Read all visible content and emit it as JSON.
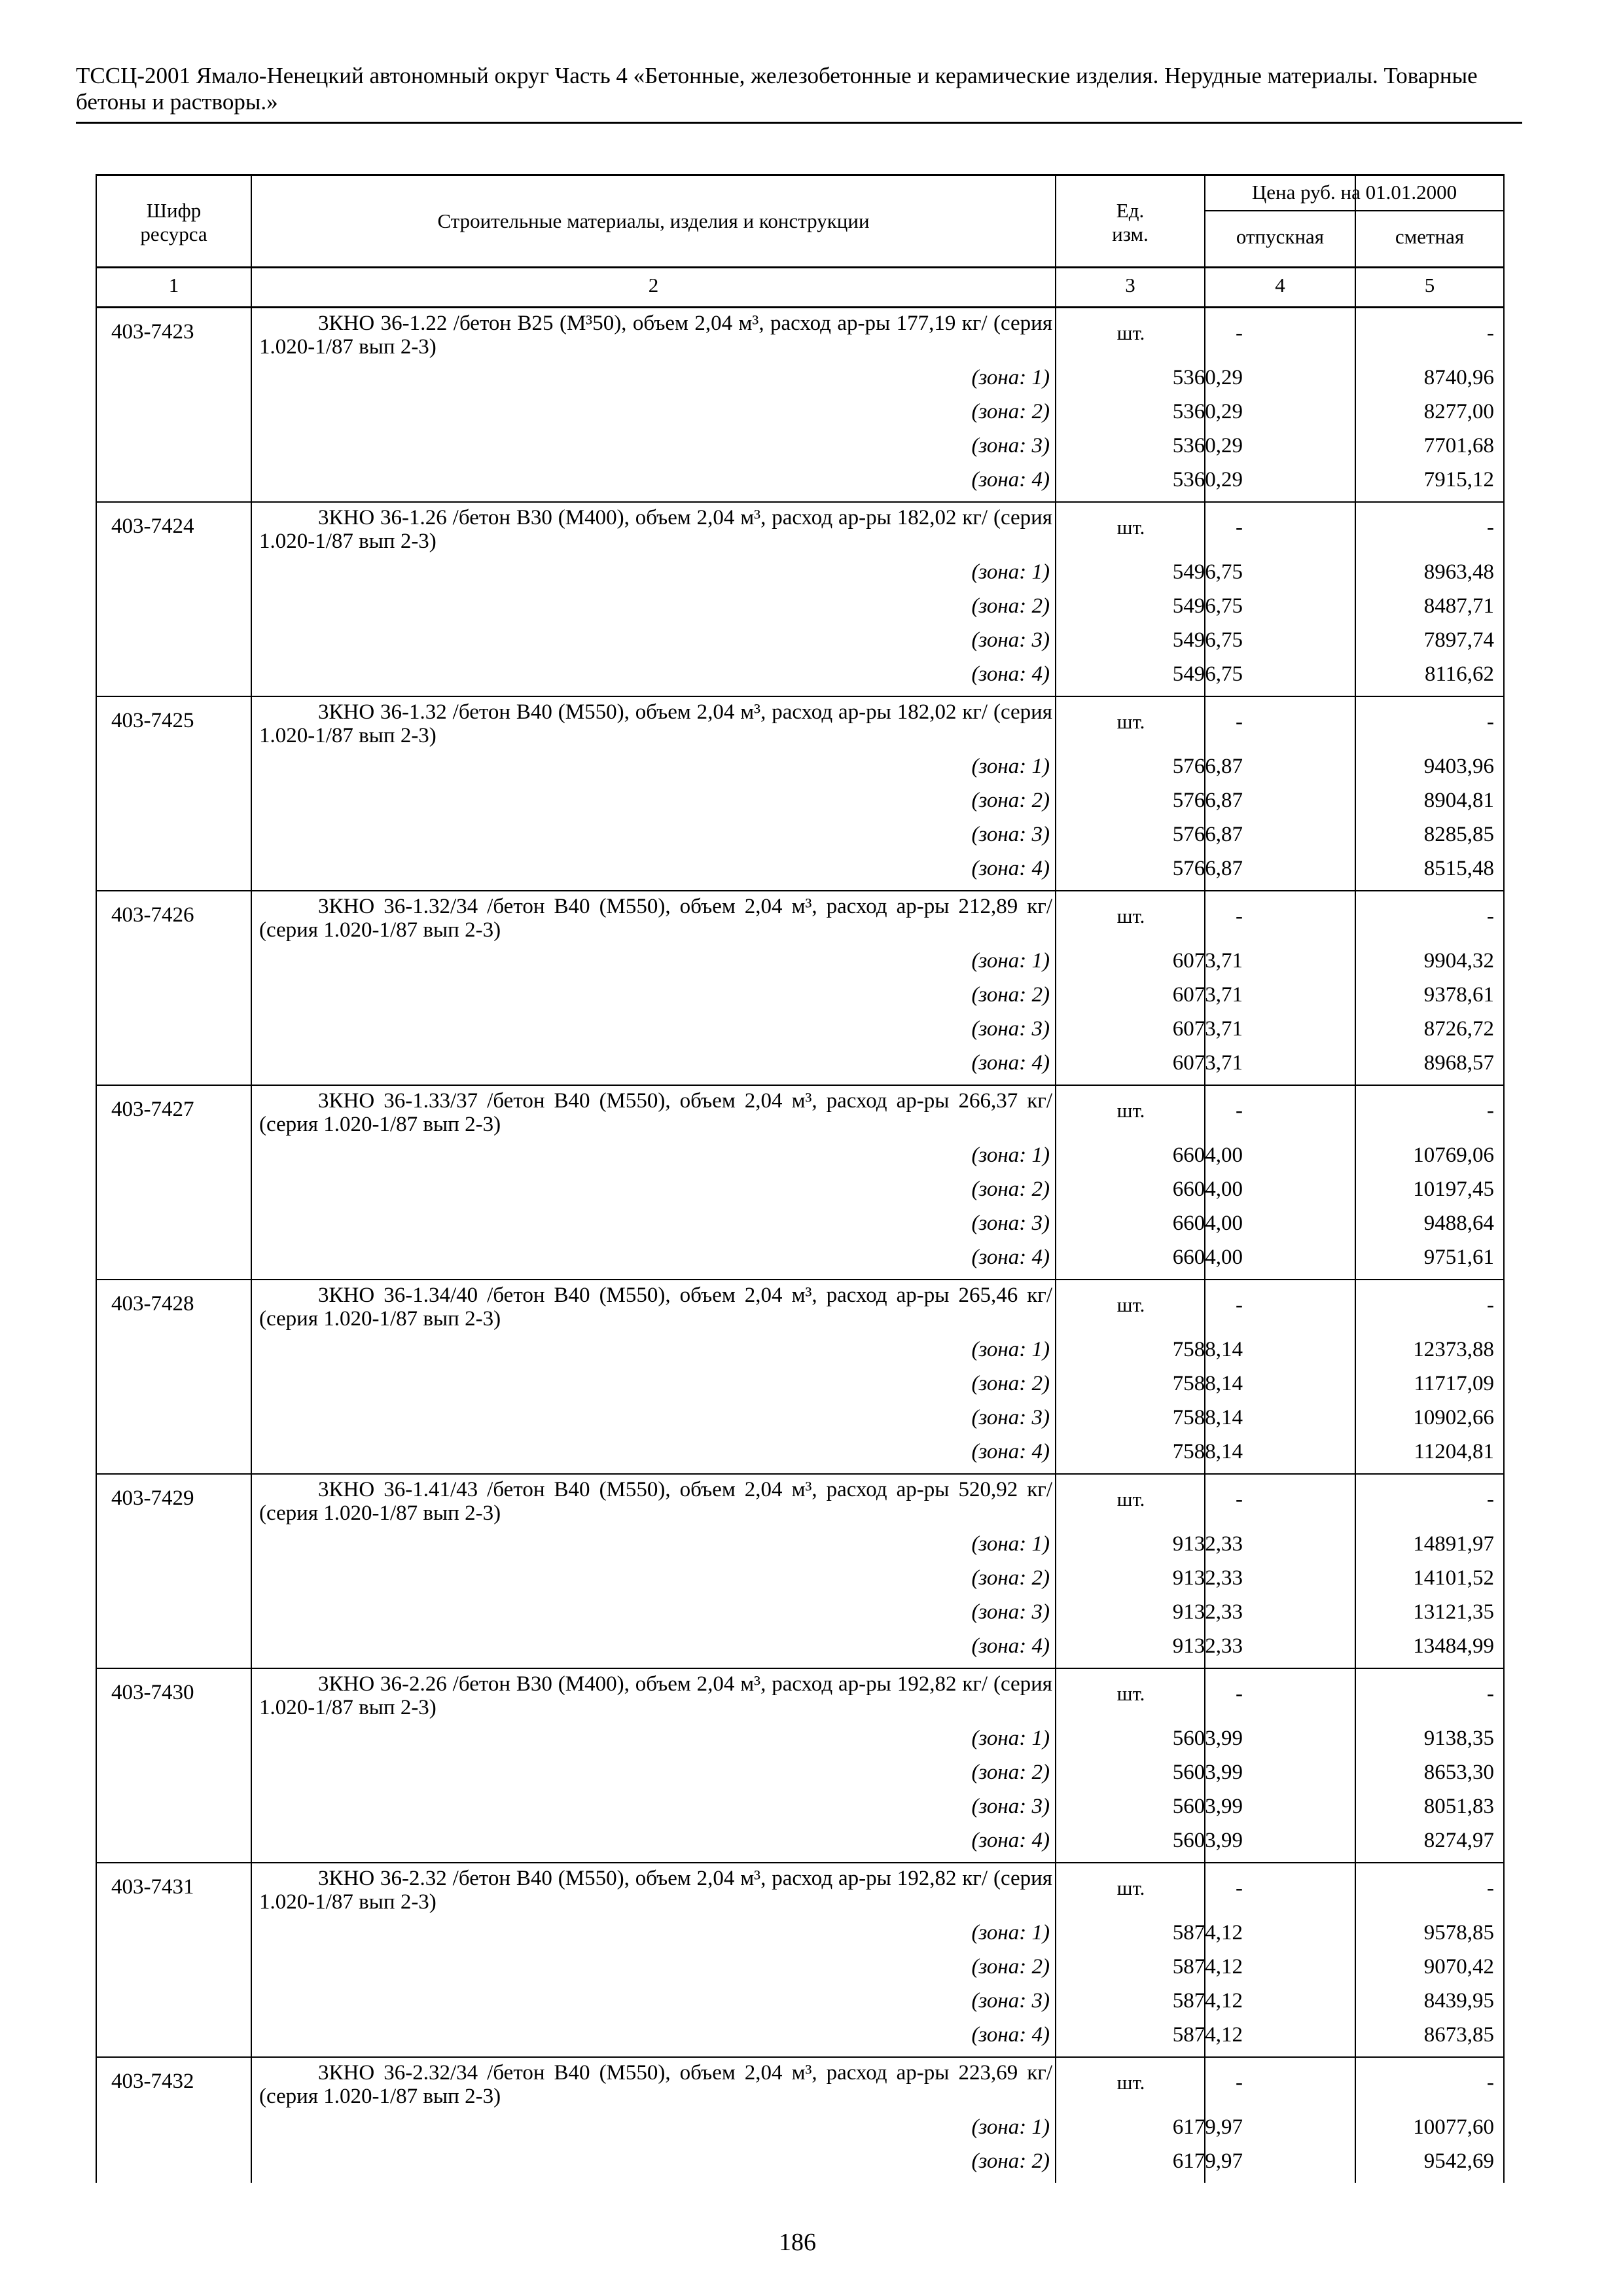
{
  "header": {
    "title": "ТССЦ-2001 Ямало-Ненецкий автономный округ Часть 4 «Бетонные, железобетонные и керамические изделия. Нерудные материалы. Товарные бетоны и растворы.»"
  },
  "table": {
    "columns": {
      "code": "Шифр ресурса",
      "name": "Строительные материалы, изделия и конструкции",
      "unit": "Ед. изм.",
      "price_group": "Цена руб. на 01.01.2000",
      "release": "отпускная",
      "estimate": "сметная"
    },
    "column_numbers": [
      "1",
      "2",
      "3",
      "4",
      "5"
    ],
    "rows": [
      {
        "code": "403-7423",
        "desc": "3КНО 36-1.22 /бетон В25 (М³50), объем 2,04 м³, расход ар-ры 177,19 кг/ (серия 1.020-1/87 вып 2-3)",
        "unit": "шт.",
        "dash4": "-",
        "dash5": "-",
        "zones": [
          {
            "label": "(зона: 1)",
            "release": "5360,29",
            "estimate": "8740,96"
          },
          {
            "label": "(зона: 2)",
            "release": "5360,29",
            "estimate": "8277,00"
          },
          {
            "label": "(зона: 3)",
            "release": "5360,29",
            "estimate": "7701,68"
          },
          {
            "label": "(зона: 4)",
            "release": "5360,29",
            "estimate": "7915,12"
          }
        ]
      },
      {
        "code": "403-7424",
        "desc": "3КНО 36-1.26 /бетон В30 (М400), объем 2,04 м³, расход ар-ры 182,02 кг/ (серия 1.020-1/87 вып 2-3)",
        "unit": "шт.",
        "dash4": "-",
        "dash5": "-",
        "zones": [
          {
            "label": "(зона: 1)",
            "release": "5496,75",
            "estimate": "8963,48"
          },
          {
            "label": "(зона: 2)",
            "release": "5496,75",
            "estimate": "8487,71"
          },
          {
            "label": "(зона: 3)",
            "release": "5496,75",
            "estimate": "7897,74"
          },
          {
            "label": "(зона: 4)",
            "release": "5496,75",
            "estimate": "8116,62"
          }
        ]
      },
      {
        "code": "403-7425",
        "desc": "3КНО 36-1.32 /бетон В40 (М550), объем 2,04 м³, расход ар-ры 182,02 кг/ (серия 1.020-1/87 вып 2-3)",
        "unit": "шт.",
        "dash4": "-",
        "dash5": "-",
        "zones": [
          {
            "label": "(зона: 1)",
            "release": "5766,87",
            "estimate": "9403,96"
          },
          {
            "label": "(зона: 2)",
            "release": "5766,87",
            "estimate": "8904,81"
          },
          {
            "label": "(зона: 3)",
            "release": "5766,87",
            "estimate": "8285,85"
          },
          {
            "label": "(зона: 4)",
            "release": "5766,87",
            "estimate": "8515,48"
          }
        ]
      },
      {
        "code": "403-7426",
        "desc": "3КНО 36-1.32/34 /бетон В40 (М550), объем 2,04 м³, расход ар-ры 212,89 кг/ (серия 1.020-1/87 вып 2-3)",
        "unit": "шт.",
        "dash4": "-",
        "dash5": "-",
        "zones": [
          {
            "label": "(зона: 1)",
            "release": "6073,71",
            "estimate": "9904,32"
          },
          {
            "label": "(зона: 2)",
            "release": "6073,71",
            "estimate": "9378,61"
          },
          {
            "label": "(зона: 3)",
            "release": "6073,71",
            "estimate": "8726,72"
          },
          {
            "label": "(зона: 4)",
            "release": "6073,71",
            "estimate": "8968,57"
          }
        ]
      },
      {
        "code": "403-7427",
        "desc": "3КНО 36-1.33/37 /бетон В40 (М550), объем 2,04 м³, расход ар-ры 266,37 кг/ (серия 1.020-1/87 вып 2-3)",
        "unit": "шт.",
        "dash4": "-",
        "dash5": "-",
        "zones": [
          {
            "label": "(зона: 1)",
            "release": "6604,00",
            "estimate": "10769,06"
          },
          {
            "label": "(зона: 2)",
            "release": "6604,00",
            "estimate": "10197,45"
          },
          {
            "label": "(зона: 3)",
            "release": "6604,00",
            "estimate": "9488,64"
          },
          {
            "label": "(зона: 4)",
            "release": "6604,00",
            "estimate": "9751,61"
          }
        ]
      },
      {
        "code": "403-7428",
        "desc": "3КНО 36-1.34/40 /бетон В40 (М550), объем 2,04 м³, расход ар-ры 265,46 кг/ (серия 1.020-1/87 вып 2-3)",
        "unit": "шт.",
        "dash4": "-",
        "dash5": "-",
        "zones": [
          {
            "label": "(зона: 1)",
            "release": "7588,14",
            "estimate": "12373,88"
          },
          {
            "label": "(зона: 2)",
            "release": "7588,14",
            "estimate": "11717,09"
          },
          {
            "label": "(зона: 3)",
            "release": "7588,14",
            "estimate": "10902,66"
          },
          {
            "label": "(зона: 4)",
            "release": "7588,14",
            "estimate": "11204,81"
          }
        ]
      },
      {
        "code": "403-7429",
        "desc": "3КНО 36-1.41/43 /бетон В40 (М550), объем 2,04 м³, расход ар-ры 520,92 кг/ (серия 1.020-1/87 вып 2-3)",
        "unit": "шт.",
        "dash4": "-",
        "dash5": "-",
        "zones": [
          {
            "label": "(зона: 1)",
            "release": "9132,33",
            "estimate": "14891,97"
          },
          {
            "label": "(зона: 2)",
            "release": "9132,33",
            "estimate": "14101,52"
          },
          {
            "label": "(зона: 3)",
            "release": "9132,33",
            "estimate": "13121,35"
          },
          {
            "label": "(зона: 4)",
            "release": "9132,33",
            "estimate": "13484,99"
          }
        ]
      },
      {
        "code": "403-7430",
        "desc": "3КНО 36-2.26 /бетон В30 (М400), объем 2,04 м³, расход ар-ры 192,82 кг/ (серия 1.020-1/87 вып 2-3)",
        "unit": "шт.",
        "dash4": "-",
        "dash5": "-",
        "zones": [
          {
            "label": "(зона: 1)",
            "release": "5603,99",
            "estimate": "9138,35"
          },
          {
            "label": "(зона: 2)",
            "release": "5603,99",
            "estimate": "8653,30"
          },
          {
            "label": "(зона: 3)",
            "release": "5603,99",
            "estimate": "8051,83"
          },
          {
            "label": "(зона: 4)",
            "release": "5603,99",
            "estimate": "8274,97"
          }
        ]
      },
      {
        "code": "403-7431",
        "desc": "3КНО 36-2.32 /бетон В40 (М550), объем 2,04 м³, расход ар-ры 192,82 кг/ (серия 1.020-1/87 вып 2-3)",
        "unit": "шт.",
        "dash4": "-",
        "dash5": "-",
        "zones": [
          {
            "label": "(зона: 1)",
            "release": "5874,12",
            "estimate": "9578,85"
          },
          {
            "label": "(зона: 2)",
            "release": "5874,12",
            "estimate": "9070,42"
          },
          {
            "label": "(зона: 3)",
            "release": "5874,12",
            "estimate": "8439,95"
          },
          {
            "label": "(зона: 4)",
            "release": "5874,12",
            "estimate": "8673,85"
          }
        ]
      },
      {
        "code": "403-7432",
        "desc": "3КНО 36-2.32/34 /бетон В40 (М550), объем 2,04 м³, расход ар-ры 223,69 кг/ (серия 1.020-1/87 вып 2-3)",
        "unit": "шт.",
        "dash4": "-",
        "dash5": "-",
        "zones": [
          {
            "label": "(зона: 1)",
            "release": "6179,97",
            "estimate": "10077,60"
          },
          {
            "label": "(зона: 2)",
            "release": "6179,97",
            "estimate": "9542,69"
          }
        ]
      }
    ]
  },
  "footer": {
    "page_number": "186"
  }
}
